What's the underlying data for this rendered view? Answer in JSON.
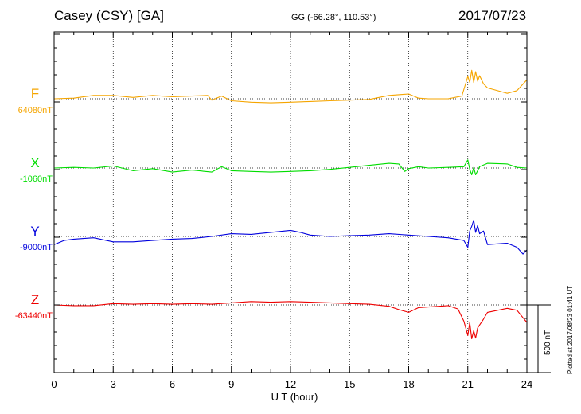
{
  "header": {
    "station": "Casey (CSY)  [GA]",
    "coords": "GG (-66.28°, 110.53°)",
    "date": "2017/07/23"
  },
  "plotted_note": "Plotted at 2017/08/23 01:41 UT",
  "scale_label": "500 nT",
  "colors": {
    "F": "#f5a500",
    "X": "#00dd00",
    "Y": "#0000dd",
    "Z": "#ee0000",
    "grid": "#000000"
  },
  "chart_data": {
    "type": "line",
    "title": "Casey (CSY)  [GA]",
    "xlabel": "U T (hour)",
    "ylabel": "",
    "xlim": [
      0,
      24
    ],
    "xticks": [
      "0",
      "3",
      "6",
      "9",
      "12",
      "15",
      "18",
      "21",
      "24"
    ],
    "grid": true,
    "scale_bar_nT": 500,
    "series": [
      {
        "name": "F",
        "baseline_label": "64080nT",
        "color": "#f5a500",
        "x": [
          0,
          1,
          2,
          3,
          4,
          5,
          6,
          7,
          7.8,
          8,
          8.5,
          9,
          10,
          11,
          12,
          13,
          14,
          15,
          16,
          17,
          18,
          18.5,
          19,
          20,
          20.7,
          21,
          21.1,
          21.2,
          21.3,
          21.4,
          21.5,
          21.6,
          21.8,
          22,
          23,
          23.5,
          24
        ],
        "values": [
          0,
          5,
          25,
          25,
          10,
          25,
          15,
          20,
          25,
          -10,
          20,
          -15,
          -25,
          -30,
          -25,
          -20,
          -15,
          -10,
          -5,
          25,
          35,
          5,
          0,
          0,
          20,
          165,
          120,
          210,
          120,
          200,
          130,
          170,
          110,
          80,
          40,
          60,
          140
        ]
      },
      {
        "name": "X",
        "baseline_label": "-1060nT",
        "color": "#00dd00",
        "x": [
          0,
          1,
          2,
          3,
          4,
          5,
          6,
          7,
          8,
          8.5,
          9,
          10,
          11,
          12,
          13,
          14,
          15,
          16,
          17,
          17.5,
          17.8,
          18,
          18.5,
          19,
          20,
          20.8,
          21,
          21.1,
          21.2,
          21.3,
          21.4,
          21.6,
          22,
          23,
          23.5,
          24
        ],
        "values": [
          0,
          5,
          0,
          15,
          -20,
          -5,
          -30,
          -15,
          -30,
          10,
          -20,
          -25,
          -30,
          -25,
          -20,
          -10,
          5,
          20,
          35,
          30,
          -25,
          -5,
          10,
          0,
          5,
          10,
          60,
          -10,
          -50,
          5,
          -50,
          10,
          35,
          30,
          5,
          0
        ]
      },
      {
        "name": "Y",
        "baseline_label": "-9000nT",
        "color": "#0000dd",
        "x": [
          0,
          0.5,
          1,
          2,
          3,
          4,
          5,
          6,
          7,
          8,
          9,
          10,
          11,
          12,
          12.5,
          13,
          14,
          15,
          16,
          17,
          18,
          19,
          20,
          20.8,
          21,
          21.1,
          21.2,
          21.3,
          21.4,
          21.5,
          21.6,
          21.8,
          22,
          23,
          23.5,
          23.8,
          24
        ],
        "values": [
          -60,
          -30,
          -20,
          -10,
          -40,
          -40,
          -30,
          -20,
          -15,
          0,
          20,
          15,
          30,
          45,
          30,
          10,
          0,
          5,
          10,
          20,
          10,
          0,
          -10,
          -30,
          -80,
          40,
          75,
          120,
          30,
          80,
          20,
          40,
          -60,
          -50,
          -80,
          -130,
          -100
        ]
      },
      {
        "name": "Z",
        "baseline_label": "-63440nT",
        "color": "#ee0000",
        "x": [
          0,
          1,
          2,
          3,
          4,
          5,
          6,
          7,
          8,
          9,
          10,
          11,
          12,
          13,
          14,
          15,
          16,
          17,
          17.5,
          18,
          18.5,
          19,
          20,
          20.5,
          20.8,
          21,
          21.1,
          21.2,
          21.3,
          21.4,
          21.5,
          21.8,
          22,
          23,
          23.5,
          24
        ],
        "values": [
          0,
          -5,
          -5,
          10,
          5,
          10,
          5,
          10,
          5,
          15,
          25,
          20,
          25,
          20,
          15,
          10,
          5,
          -10,
          -35,
          -55,
          -20,
          -15,
          -5,
          -30,
          -120,
          -225,
          -130,
          -250,
          -190,
          -245,
          -170,
          -105,
          -55,
          -25,
          -40,
          -130
        ]
      }
    ]
  }
}
